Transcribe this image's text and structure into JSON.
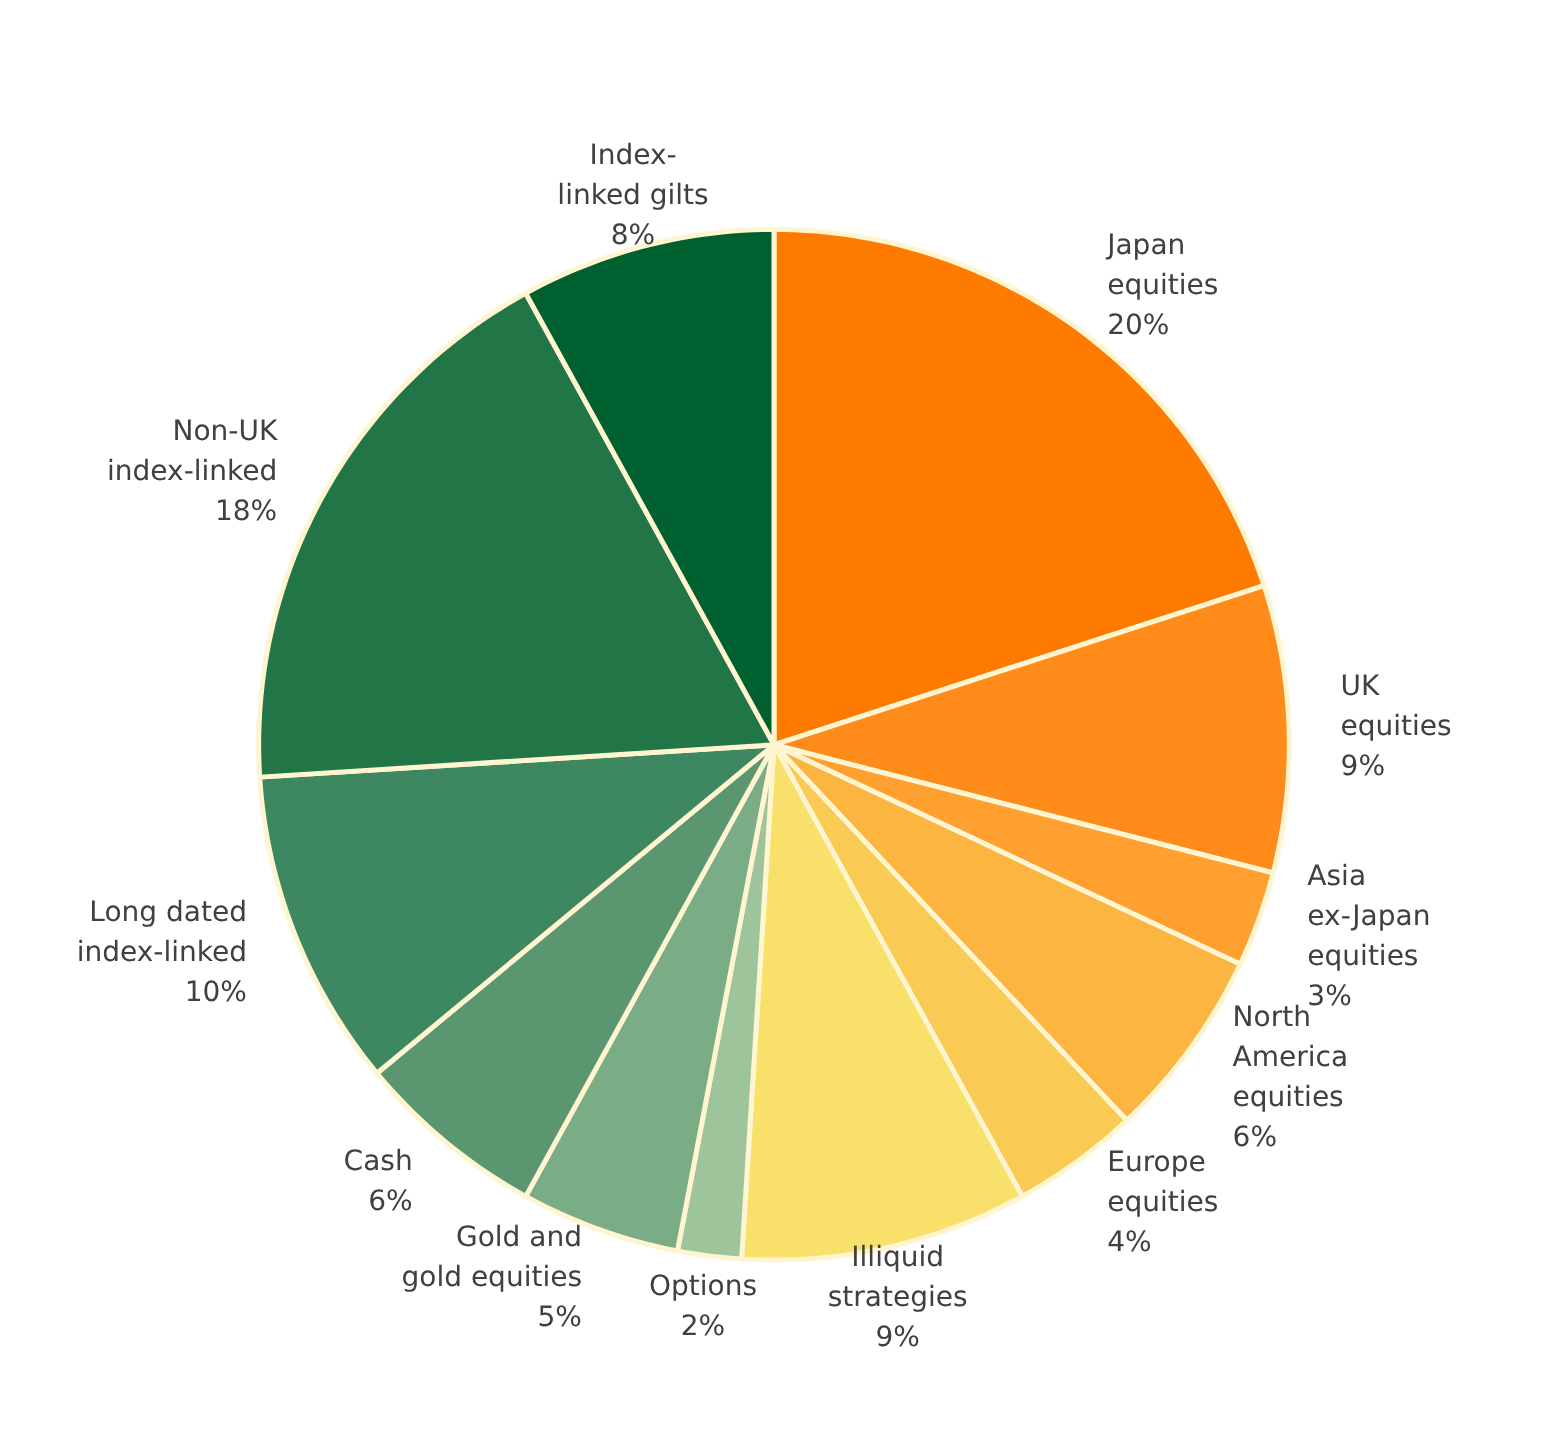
{
  "chart_data": {
    "type": "pie",
    "categories": [
      "Japan\nequities",
      "UK\nequities",
      "Asia\nex-Japan\nequities",
      "North\nAmerica\nequities",
      "Europe\nequities",
      "Illiquid\nstrategies",
      "Options",
      "Gold and\ngold equities",
      "Cash",
      "Long dated\nindex-linked",
      "Non-UK\nindex-linked",
      "Index-\nlinked gilts"
    ],
    "values": [
      20,
      9,
      3,
      6,
      4,
      9,
      2,
      5,
      6,
      10,
      18,
      8
    ],
    "value_labels": [
      "20%",
      "9%",
      "3%",
      "6%",
      "4%",
      "9%",
      "2%",
      "5%",
      "6%",
      "10%",
      "18%",
      "8%"
    ],
    "colors": [
      "#ff7b00",
      "#ff8c1a",
      "#ffa030",
      "#fbb540",
      "#f9cb55",
      "#f9e06a",
      "#9dc49a",
      "#7aad85",
      "#5a9670",
      "#3d8860",
      "#217547",
      "#006030"
    ]
  }
}
